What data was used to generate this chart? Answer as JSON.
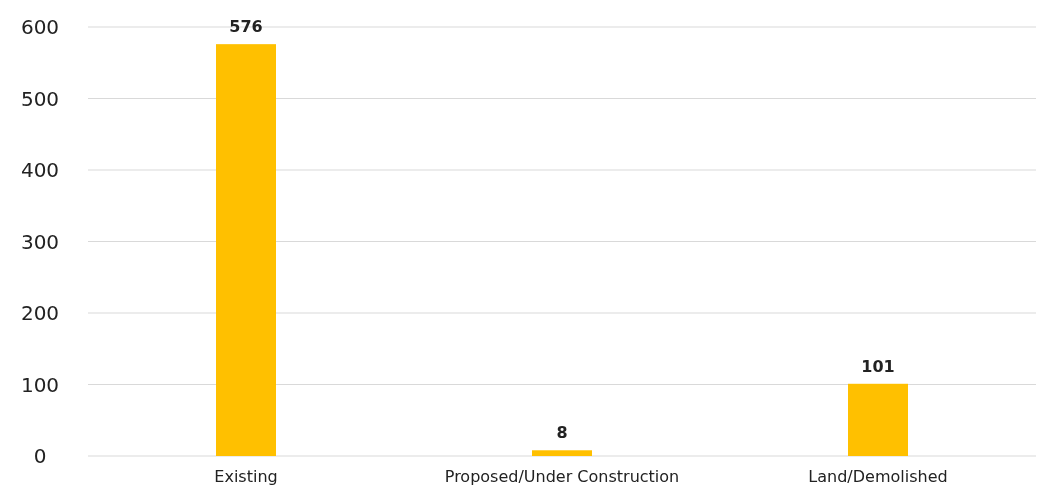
{
  "chart_data": {
    "type": "bar",
    "categories": [
      "Existing",
      "Proposed/Under Construction",
      "Land/Demolished"
    ],
    "values": [
      576,
      8,
      101
    ],
    "color": "#ffc000",
    "ylim": [
      0,
      600
    ],
    "yticks": [
      0,
      100,
      200,
      300,
      400,
      500,
      600
    ],
    "grid": "y",
    "data_labels": true
  }
}
